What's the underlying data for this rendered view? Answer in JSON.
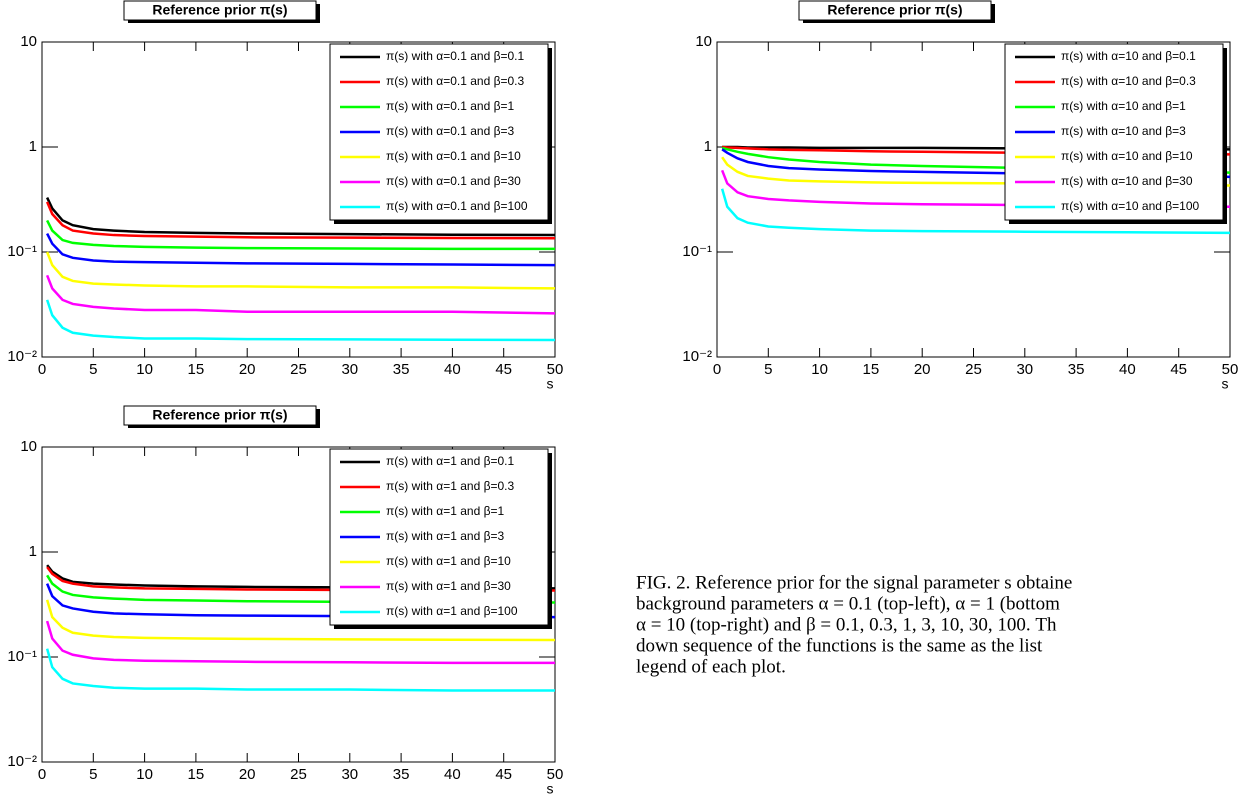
{
  "chart_data": [
    {
      "type": "line",
      "title": "Reference prior π(s)",
      "x_label": "s",
      "log_y": true,
      "legend": "upper right",
      "x": [
        0.5,
        1,
        2,
        3,
        5,
        7,
        10,
        15,
        20,
        30,
        40,
        50
      ],
      "xlim": [
        0,
        50
      ],
      "xticks": [
        0,
        5,
        10,
        15,
        20,
        25,
        30,
        35,
        40,
        45,
        50
      ],
      "ylim": [
        0.01,
        10
      ],
      "yticks": [
        {
          "value": 0.01,
          "label": "10⁻²"
        },
        {
          "value": 0.1,
          "label": "10⁻¹"
        },
        1,
        10
      ],
      "series": [
        {
          "name": "π(s) with α=0.1 and β=0.1",
          "color": "#000000",
          "values": [
            0.33,
            0.26,
            0.2,
            0.18,
            0.165,
            0.16,
            0.155,
            0.152,
            0.15,
            0.148,
            0.146,
            0.145
          ]
        },
        {
          "name": "π(s) with α=0.1 and β=0.3",
          "color": "#ff0000",
          "values": [
            0.3,
            0.23,
            0.18,
            0.16,
            0.15,
            0.145,
            0.142,
            0.14,
            0.138,
            0.137,
            0.136,
            0.135
          ]
        },
        {
          "name": "π(s) with α=0.1 and β=1",
          "color": "#00ff00",
          "values": [
            0.2,
            0.16,
            0.13,
            0.122,
            0.117,
            0.114,
            0.112,
            0.11,
            0.109,
            0.108,
            0.107,
            0.107
          ]
        },
        {
          "name": "π(s) with α=0.1 and β=3",
          "color": "#0000ff",
          "values": [
            0.15,
            0.12,
            0.095,
            0.088,
            0.083,
            0.081,
            0.08,
            0.079,
            0.078,
            0.077,
            0.076,
            0.075
          ]
        },
        {
          "name": "π(s) with α=0.1 and β=10",
          "color": "#ffff00",
          "values": [
            0.1,
            0.075,
            0.058,
            0.053,
            0.05,
            0.049,
            0.048,
            0.047,
            0.047,
            0.046,
            0.046,
            0.045
          ]
        },
        {
          "name": "π(s) with α=0.1 and β=30",
          "color": "#ff00ff",
          "values": [
            0.06,
            0.045,
            0.035,
            0.032,
            0.03,
            0.029,
            0.028,
            0.028,
            0.027,
            0.027,
            0.027,
            0.026
          ]
        },
        {
          "name": "π(s) with α=0.1 and β=100",
          "color": "#00ffff",
          "values": [
            0.035,
            0.025,
            0.019,
            0.017,
            0.016,
            0.0155,
            0.015,
            0.015,
            0.0148,
            0.0147,
            0.0146,
            0.0145
          ]
        }
      ]
    },
    {
      "type": "line",
      "title": "Reference prior π(s)",
      "x_label": "s",
      "log_y": true,
      "legend": "upper right",
      "x": [
        0.5,
        1,
        2,
        3,
        5,
        7,
        10,
        15,
        20,
        30,
        40,
        50
      ],
      "xlim": [
        0,
        50
      ],
      "xticks": [
        0,
        5,
        10,
        15,
        20,
        25,
        30,
        35,
        40,
        45,
        50
      ],
      "ylim": [
        0.01,
        10
      ],
      "yticks": [
        {
          "value": 0.01,
          "label": "10⁻²"
        },
        {
          "value": 0.1,
          "label": "10⁻¹"
        },
        1,
        10
      ],
      "series": [
        {
          "name": "π(s) with α=10 and β=0.1",
          "color": "#000000",
          "values": [
            1.0,
            1.0,
            1.0,
            0.99,
            0.99,
            0.99,
            0.98,
            0.98,
            0.98,
            0.97,
            0.96,
            0.95
          ]
        },
        {
          "name": "π(s) with α=10 and β=0.3",
          "color": "#ff0000",
          "values": [
            1.0,
            0.99,
            0.98,
            0.97,
            0.95,
            0.94,
            0.93,
            0.91,
            0.9,
            0.88,
            0.86,
            0.85
          ]
        },
        {
          "name": "π(s) with α=10 and β=1",
          "color": "#00ff00",
          "values": [
            0.98,
            0.95,
            0.9,
            0.86,
            0.8,
            0.76,
            0.72,
            0.68,
            0.66,
            0.63,
            0.6,
            0.57
          ]
        },
        {
          "name": "π(s) with α=10 and β=3",
          "color": "#0000ff",
          "values": [
            0.95,
            0.88,
            0.78,
            0.72,
            0.66,
            0.63,
            0.61,
            0.59,
            0.58,
            0.56,
            0.54,
            0.52
          ]
        },
        {
          "name": "π(s) with α=10 and β=10",
          "color": "#ffff00",
          "values": [
            0.8,
            0.68,
            0.58,
            0.53,
            0.5,
            0.48,
            0.47,
            0.46,
            0.455,
            0.45,
            0.44,
            0.43
          ]
        },
        {
          "name": "π(s) with α=10 and β=30",
          "color": "#ff00ff",
          "values": [
            0.6,
            0.45,
            0.37,
            0.34,
            0.32,
            0.31,
            0.3,
            0.29,
            0.285,
            0.28,
            0.275,
            0.27
          ]
        },
        {
          "name": "π(s) with α=10 and β=100",
          "color": "#00ffff",
          "values": [
            0.4,
            0.27,
            0.21,
            0.19,
            0.175,
            0.17,
            0.165,
            0.16,
            0.158,
            0.156,
            0.154,
            0.152
          ]
        }
      ]
    },
    {
      "type": "line",
      "title": "Reference prior π(s)",
      "x_label": "s",
      "log_y": true,
      "legend": "upper right",
      "x": [
        0.5,
        1,
        2,
        3,
        5,
        7,
        10,
        15,
        20,
        30,
        40,
        50
      ],
      "xlim": [
        0,
        50
      ],
      "xticks": [
        0,
        5,
        10,
        15,
        20,
        25,
        30,
        35,
        40,
        45,
        50
      ],
      "ylim": [
        0.01,
        10
      ],
      "yticks": [
        {
          "value": 0.01,
          "label": "10⁻²"
        },
        {
          "value": 0.1,
          "label": "10⁻¹"
        },
        1,
        10
      ],
      "series": [
        {
          "name": "π(s) with α=1 and β=0.1",
          "color": "#000000",
          "values": [
            0.75,
            0.65,
            0.56,
            0.52,
            0.5,
            0.49,
            0.48,
            0.47,
            0.465,
            0.46,
            0.455,
            0.45
          ]
        },
        {
          "name": "π(s) with α=1 and β=0.3",
          "color": "#ff0000",
          "values": [
            0.72,
            0.62,
            0.53,
            0.5,
            0.47,
            0.46,
            0.45,
            0.445,
            0.44,
            0.435,
            0.432,
            0.43
          ]
        },
        {
          "name": "π(s) with α=1 and β=1",
          "color": "#00ff00",
          "values": [
            0.6,
            0.5,
            0.42,
            0.39,
            0.37,
            0.36,
            0.35,
            0.345,
            0.34,
            0.335,
            0.332,
            0.33
          ]
        },
        {
          "name": "π(s) with α=1 and β=3",
          "color": "#0000ff",
          "values": [
            0.5,
            0.38,
            0.31,
            0.29,
            0.27,
            0.26,
            0.255,
            0.25,
            0.248,
            0.245,
            0.242,
            0.24
          ]
        },
        {
          "name": "π(s) with α=1 and β=10",
          "color": "#ffff00",
          "values": [
            0.35,
            0.24,
            0.19,
            0.17,
            0.16,
            0.155,
            0.152,
            0.15,
            0.149,
            0.147,
            0.146,
            0.145
          ]
        },
        {
          "name": "π(s) with α=1 and β=30",
          "color": "#ff00ff",
          "values": [
            0.22,
            0.15,
            0.115,
            0.105,
            0.097,
            0.094,
            0.092,
            0.091,
            0.09,
            0.089,
            0.088,
            0.088
          ]
        },
        {
          "name": "π(s) with α=1 and β=100",
          "color": "#00ffff",
          "values": [
            0.12,
            0.08,
            0.062,
            0.056,
            0.053,
            0.051,
            0.05,
            0.05,
            0.049,
            0.049,
            0.048,
            0.048
          ]
        }
      ]
    }
  ],
  "caption": {
    "lines": [
      "FIG. 2. Reference prior for the signal parameter s obtaine",
      "background parameters α = 0.1 (top-left), α = 1 (bottom",
      "α = 10 (top-right) and β = 0.1, 0.3, 1, 3, 10, 30, 100.  Th",
      "down sequence of the functions is the same as the list",
      "legend of each plot."
    ]
  }
}
